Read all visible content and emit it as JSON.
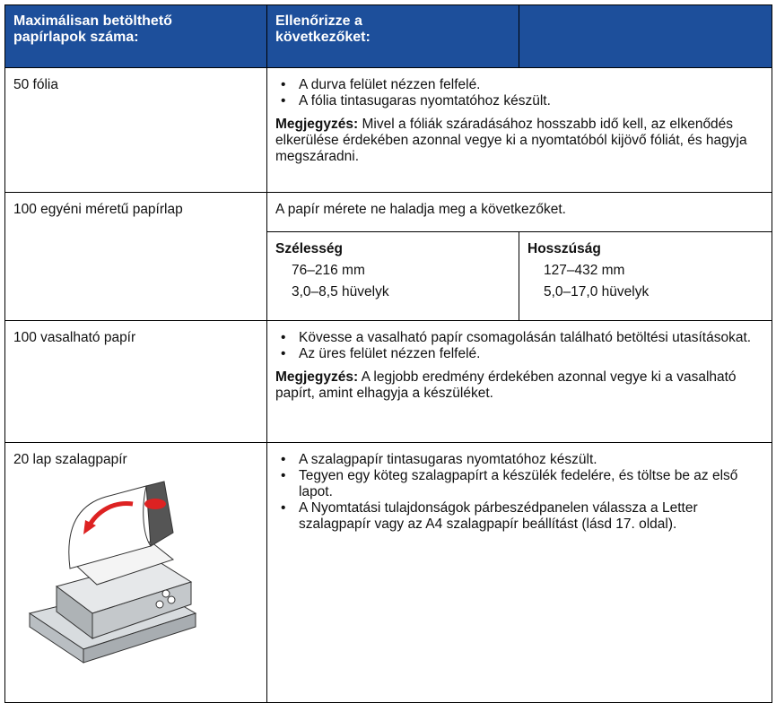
{
  "table": {
    "header": [
      [
        "Maximálisan betölthető",
        "papírlapok száma:"
      ],
      [
        "Ellenőrizze a",
        "következőket:"
      ]
    ],
    "rows": [
      {
        "label": "50 fólia",
        "bullets": [
          "A durva felület nézzen felfelé.",
          "A fólia tintasugaras nyomtatóhoz készült."
        ],
        "note": {
          "label": "Megjegyzés:",
          "text": "Mivel a fóliák száradásához hosszabb idő kell, az elkenődés elkerülése érdekében azonnal vegye ki a nyomtatóból kijövő fóliát, és hagyja megszáradni."
        }
      },
      {
        "label": "100 egyéni méretű papírlap",
        "intro": "A papír mérete ne haladja meg a következőket.",
        "sizes": [
          {
            "title": "Szélesség",
            "lines": [
              "76–216 mm",
              "3,0–8,5 hüvelyk"
            ]
          },
          {
            "title": "Hosszúság",
            "lines": [
              "127–432 mm",
              "5,0–17,0 hüvelyk"
            ]
          }
        ]
      },
      {
        "label": "100 vasalható papír",
        "bullets": [
          "Kövesse a vasalható papír csomagolásán található betöltési utasításokat.",
          "Az üres felület nézzen felfelé."
        ],
        "note": {
          "label": "Megjegyzés:",
          "text": "A legjobb eredmény érdekében azonnal vegye ki a vasalható papírt, amint elhagyja a készüléket."
        }
      },
      {
        "label": "20 lap szalagpapír",
        "bullets": [
          "A szalagpapír tintasugaras nyomtatóhoz készült.",
          "Tegyen egy köteg szalagpapírt a készülék fedelére, és töltse be az első lapot.",
          "A Nyomtatási tulajdonságok párbeszédpanelen válassza a Letter szalagpapír vagy az A4 szalagpapír beállítást (lásd 17. oldal)."
        ]
      }
    ]
  }
}
